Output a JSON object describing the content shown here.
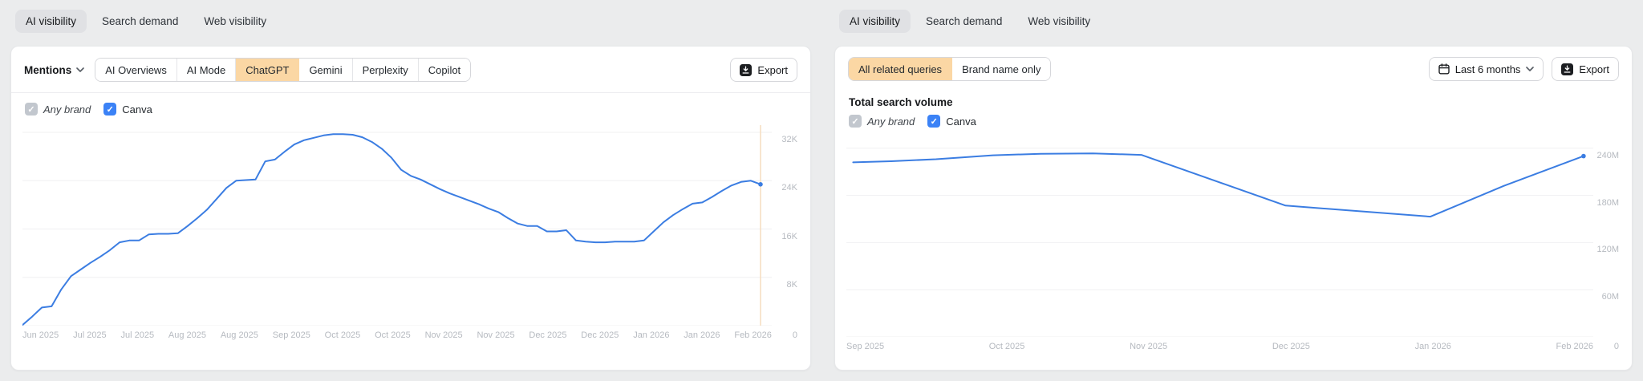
{
  "panels": {
    "left": {
      "tabs": [
        {
          "label": "AI visibility",
          "active": true
        },
        {
          "label": "Search demand",
          "active": false
        },
        {
          "label": "Web visibility",
          "active": false
        }
      ],
      "metric_dropdown": {
        "label": "Mentions"
      },
      "sources": [
        {
          "label": "AI Overviews",
          "active": false
        },
        {
          "label": "AI Mode",
          "active": false
        },
        {
          "label": "ChatGPT",
          "active": true
        },
        {
          "label": "Gemini",
          "active": false
        },
        {
          "label": "Perplexity",
          "active": false
        },
        {
          "label": "Copilot",
          "active": false
        }
      ],
      "export_label": "Export",
      "legend": [
        {
          "label": "Any brand",
          "checked": true,
          "style": "gray"
        },
        {
          "label": "Canva",
          "checked": true,
          "style": "blue"
        }
      ]
    },
    "right": {
      "tabs": [
        {
          "label": "AI visibility",
          "active": true
        },
        {
          "label": "Search demand",
          "active": false
        },
        {
          "label": "Web visibility",
          "active": false
        }
      ],
      "query_filters": [
        {
          "label": "All related queries",
          "active": true
        },
        {
          "label": "Brand name only",
          "active": false
        }
      ],
      "date_range_label": "Last 6 months",
      "export_label": "Export",
      "heading": "Total search volume",
      "legend": [
        {
          "label": "Any brand",
          "checked": true,
          "style": "gray"
        },
        {
          "label": "Canva",
          "checked": true,
          "style": "blue"
        }
      ]
    }
  },
  "colors": {
    "line_blue": "#3b7de2",
    "selected_segment": "#fbd7a4",
    "today_marker": "#f6ddbf",
    "checkbox_blue": "#3b82f6",
    "checkbox_gray": "#c2c7ce",
    "gridline": "#f0f0f2"
  },
  "chart_data": [
    {
      "id": "mentions-chatgpt",
      "type": "line",
      "title": "Mentions (ChatGPT)",
      "unit": "K",
      "grid": true,
      "legend_position": "top-left-checkboxes",
      "y_max": 33.2,
      "x_end_frac": 0.985,
      "today_marker": {
        "x_frac": 0.985,
        "color": "#f6ddbf"
      },
      "x_labels": [
        "Jun 2025",
        "Jul 2025",
        "Jul 2025",
        "Aug 2025",
        "Aug 2025",
        "Sep 2025",
        "Oct 2025",
        "Oct 2025",
        "Nov 2025",
        "Nov 2025",
        "Dec 2025",
        "Dec 2025",
        "Jan 2026",
        "Jan 2026",
        "Feb 2026"
      ],
      "y_ticks": [
        {
          "label": "32K",
          "value": 32
        },
        {
          "label": "24K",
          "value": 24
        },
        {
          "label": "16K",
          "value": 16
        },
        {
          "label": "8K",
          "value": 8
        },
        {
          "label": "0",
          "value": 0
        }
      ],
      "series": [
        {
          "name": "Canva",
          "color": "#3b7de2",
          "values": [
            0.1,
            1.5,
            3.0,
            3.2,
            6.0,
            8.2,
            9.3,
            10.4,
            11.4,
            12.5,
            13.8,
            14.1,
            14.1,
            15.1,
            15.2,
            15.2,
            15.3,
            16.5,
            17.8,
            19.2,
            21.0,
            22.8,
            24.0,
            24.1,
            24.2,
            27.2,
            27.5,
            28.8,
            30.0,
            30.7,
            31.1,
            31.5,
            31.7,
            31.7,
            31.6,
            31.2,
            30.4,
            29.3,
            27.8,
            25.8,
            24.8,
            24.2,
            23.4,
            22.6,
            21.9,
            21.3,
            20.7,
            20.1,
            19.4,
            18.8,
            17.8,
            16.9,
            16.5,
            16.5,
            15.6,
            15.6,
            15.8,
            14.1,
            13.9,
            13.8,
            13.8,
            13.9,
            13.9,
            13.9,
            14.1,
            15.6,
            17.1,
            18.3,
            19.3,
            20.2,
            20.4,
            21.3,
            22.3,
            23.2,
            23.8,
            24.0,
            23.4
          ]
        }
      ]
    },
    {
      "id": "total-search-volume",
      "type": "line",
      "title": "Total search volume",
      "unit": "M",
      "grid": true,
      "legend_position": "top-left-checkboxes",
      "y_max": 250,
      "x_labels": [
        "Sep 2025",
        "Oct 2025",
        "Nov 2025",
        "Dec 2025",
        "Jan 2026",
        "Feb 2026"
      ],
      "y_ticks": [
        {
          "label": "240M",
          "value": 240
        },
        {
          "label": "180M",
          "value": 180
        },
        {
          "label": "120M",
          "value": 120
        },
        {
          "label": "60M",
          "value": 60
        },
        {
          "label": "0",
          "value": 0
        }
      ],
      "series": [
        {
          "name": "Canva",
          "color": "#3b7de2",
          "points": [
            [
              0.009,
              222
            ],
            [
              0.06,
              223.5
            ],
            [
              0.12,
              226
            ],
            [
              0.196,
              231
            ],
            [
              0.26,
              233
            ],
            [
              0.33,
              233.5
            ],
            [
              0.395,
              231.5
            ],
            [
              0.588,
              167
            ],
            [
              0.782,
              153
            ],
            [
              0.88,
              192
            ],
            [
              0.987,
              230
            ]
          ]
        }
      ]
    }
  ]
}
